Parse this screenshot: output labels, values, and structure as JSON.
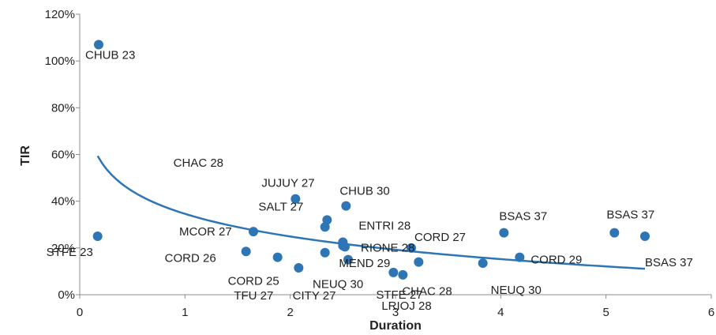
{
  "chart_data": {
    "type": "scatter",
    "xlabel": "Duration",
    "ylabel": "TIR",
    "xlim": [
      0,
      6
    ],
    "ylim": [
      0,
      1.2
    ],
    "x_ticks": [
      "0",
      "1",
      "2",
      "3",
      "4",
      "5",
      "6"
    ],
    "y_ticks": [
      "0%",
      "20%",
      "40%",
      "60%",
      "80%",
      "100%",
      "120%"
    ],
    "point_color": "#2e75b6",
    "trend_color": "#2e75b6",
    "grid": false,
    "points": [
      {
        "x": 0.18,
        "y": 1.07,
        "label": "CHUB 23"
      },
      {
        "x": 0.17,
        "y": 0.25,
        "label": "STFE 23"
      },
      {
        "x": 1.65,
        "y": 0.27,
        "label": "MCOR 27"
      },
      {
        "x": 1.58,
        "y": 0.185,
        "label": "CORD 26"
      },
      {
        "x": 1.88,
        "y": 0.16,
        "label": "CORD 25"
      },
      {
        "x": 2.08,
        "y": 0.115,
        "label": "TFU 27"
      },
      {
        "x": 2.05,
        "y": 0.41,
        "label": "JUJUY 27"
      },
      {
        "x": 2.35,
        "y": 0.32,
        "label": "SALT 27"
      },
      {
        "x": 2.33,
        "y": 0.29,
        "label": "CHAC 28"
      },
      {
        "x": 2.33,
        "y": 0.18,
        "label": "CITY 27"
      },
      {
        "x": 2.53,
        "y": 0.38,
        "label": "CHUB 30"
      },
      {
        "x": 2.5,
        "y": 0.225,
        "label": "ENTRI 28"
      },
      {
        "x": 2.52,
        "y": 0.205,
        "label": "RIONE 28"
      },
      {
        "x": 2.5,
        "y": 0.21,
        "label": "MEND 29"
      },
      {
        "x": 2.55,
        "y": 0.15,
        "label": "NEUQ 30"
      },
      {
        "x": 2.98,
        "y": 0.095,
        "label": "STFE 27"
      },
      {
        "x": 3.07,
        "y": 0.085,
        "label": "LRIOJ 28"
      },
      {
        "x": 3.15,
        "y": 0.2,
        "label": "CORD 27"
      },
      {
        "x": 3.22,
        "y": 0.14,
        "label": "CHAC 28"
      },
      {
        "x": 3.83,
        "y": 0.135,
        "label": "NEUQ 30"
      },
      {
        "x": 4.03,
        "y": 0.265,
        "label": "BSAS 37"
      },
      {
        "x": 4.18,
        "y": 0.16,
        "label": "CORD 29"
      },
      {
        "x": 5.08,
        "y": 0.265,
        "label": "BSAS 37"
      },
      {
        "x": 5.37,
        "y": 0.25,
        "label": "BSAS 37"
      }
    ],
    "trendline": {
      "type": "log",
      "x_range": [
        0.17,
        5.37
      ],
      "a": 0.346,
      "b": -0.1398
    }
  }
}
